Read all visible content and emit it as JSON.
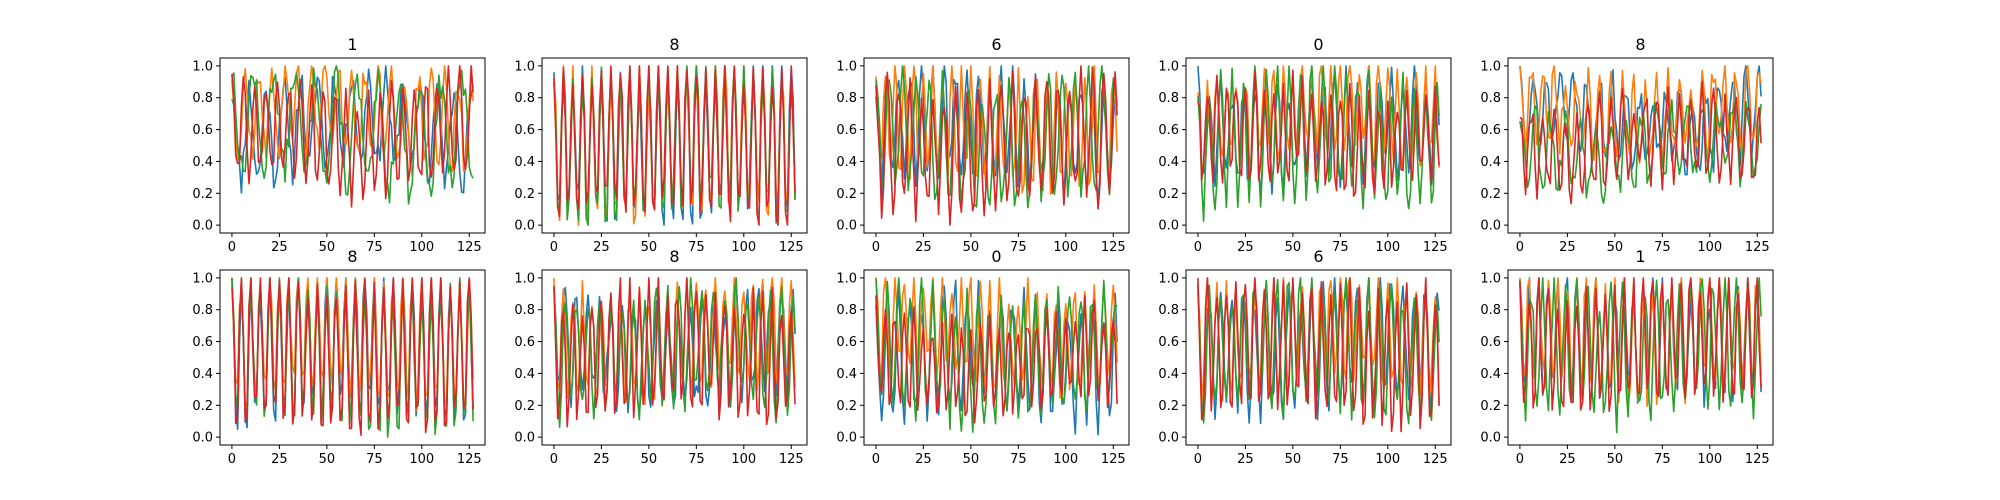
{
  "chart_data": [
    {
      "type": "line",
      "title": "1",
      "x": {
        "range": [
          0,
          127
        ],
        "ticks": [
          0,
          25,
          50,
          75,
          100,
          125
        ]
      },
      "ylim": [
        0,
        1
      ],
      "yticks": [
        "0.0",
        "0.2",
        "0.4",
        "0.6",
        "0.8",
        "1.0"
      ],
      "series": [
        {
          "color": "#1f77b4",
          "seed": 11,
          "period": 9,
          "center": 0.62,
          "amplitude": 0.28
        },
        {
          "color": "#ff7f0e",
          "seed": 12,
          "period": 7,
          "center": 0.7,
          "amplitude": 0.27
        },
        {
          "color": "#2ca02c",
          "seed": 13,
          "period": 11,
          "center": 0.6,
          "amplitude": 0.32
        },
        {
          "color": "#d62728",
          "seed": 14,
          "period": 6,
          "center": 0.58,
          "amplitude": 0.3
        }
      ]
    },
    {
      "type": "line",
      "title": "8",
      "x": {
        "range": [
          0,
          127
        ],
        "ticks": [
          0,
          25,
          50,
          75,
          100,
          125
        ]
      },
      "ylim": [
        0,
        1
      ],
      "yticks": [
        "0.0",
        "0.2",
        "0.4",
        "0.6",
        "0.8",
        "1.0"
      ],
      "series": [
        {
          "color": "#1f77b4",
          "seed": 21,
          "period": 5,
          "center": 0.52,
          "amplitude": 0.46
        },
        {
          "color": "#ff7f0e",
          "seed": 22,
          "period": 5,
          "center": 0.52,
          "amplitude": 0.46
        },
        {
          "color": "#2ca02c",
          "seed": 23,
          "period": 5,
          "center": 0.52,
          "amplitude": 0.46
        },
        {
          "color": "#d62728",
          "seed": 24,
          "period": 5,
          "center": 0.52,
          "amplitude": 0.47
        }
      ]
    },
    {
      "type": "line",
      "title": "6",
      "x": {
        "range": [
          0,
          127
        ],
        "ticks": [
          0,
          25,
          50,
          75,
          100,
          125
        ]
      },
      "ylim": [
        0,
        1
      ],
      "yticks": [
        "0.0",
        "0.2",
        "0.4",
        "0.6",
        "0.8",
        "1.0"
      ],
      "series": [
        {
          "color": "#1f77b4",
          "seed": 31,
          "period": 6,
          "center": 0.6,
          "amplitude": 0.32
        },
        {
          "color": "#ff7f0e",
          "seed": 32,
          "period": 5,
          "center": 0.62,
          "amplitude": 0.35
        },
        {
          "color": "#2ca02c",
          "seed": 33,
          "period": 7,
          "center": 0.55,
          "amplitude": 0.35
        },
        {
          "color": "#d62728",
          "seed": 34,
          "period": 6,
          "center": 0.5,
          "amplitude": 0.38
        }
      ]
    },
    {
      "type": "line",
      "title": "0",
      "x": {
        "range": [
          0,
          127
        ],
        "ticks": [
          0,
          25,
          50,
          75,
          100,
          125
        ]
      },
      "ylim": [
        0,
        1
      ],
      "yticks": [
        "0.0",
        "0.2",
        "0.4",
        "0.6",
        "0.8",
        "1.0"
      ],
      "series": [
        {
          "color": "#1f77b4",
          "seed": 41,
          "period": 6,
          "center": 0.6,
          "amplitude": 0.3
        },
        {
          "color": "#ff7f0e",
          "seed": 42,
          "period": 5,
          "center": 0.7,
          "amplitude": 0.28
        },
        {
          "color": "#2ca02c",
          "seed": 43,
          "period": 6,
          "center": 0.55,
          "amplitude": 0.38
        },
        {
          "color": "#d62728",
          "seed": 44,
          "period": 5,
          "center": 0.55,
          "amplitude": 0.28
        }
      ]
    },
    {
      "type": "line",
      "title": "8",
      "x": {
        "range": [
          0,
          127
        ],
        "ticks": [
          0,
          25,
          50,
          75,
          100,
          125
        ]
      },
      "ylim": [
        0,
        1
      ],
      "yticks": [
        "0.0",
        "0.2",
        "0.4",
        "0.6",
        "0.8",
        "1.0"
      ],
      "series": [
        {
          "color": "#1f77b4",
          "seed": 51,
          "period": 7,
          "center": 0.66,
          "amplitude": 0.22
        },
        {
          "color": "#ff7f0e",
          "seed": 52,
          "period": 6,
          "center": 0.7,
          "amplitude": 0.22
        },
        {
          "color": "#2ca02c",
          "seed": 53,
          "period": 8,
          "center": 0.5,
          "amplitude": 0.22
        },
        {
          "color": "#d62728",
          "seed": 54,
          "period": 6,
          "center": 0.52,
          "amplitude": 0.26
        }
      ]
    },
    {
      "type": "line",
      "title": "8",
      "x": {
        "range": [
          0,
          127
        ],
        "ticks": [
          0,
          25,
          50,
          75,
          100,
          125
        ]
      },
      "ylim": [
        0,
        1
      ],
      "yticks": [
        "0.0",
        "0.2",
        "0.4",
        "0.6",
        "0.8",
        "1.0"
      ],
      "series": [
        {
          "color": "#1f77b4",
          "seed": 61,
          "period": 5,
          "center": 0.55,
          "amplitude": 0.44
        },
        {
          "color": "#ff7f0e",
          "seed": 62,
          "period": 5,
          "center": 0.62,
          "amplitude": 0.38
        },
        {
          "color": "#2ca02c",
          "seed": 63,
          "period": 5,
          "center": 0.52,
          "amplitude": 0.44
        },
        {
          "color": "#d62728",
          "seed": 64,
          "period": 5,
          "center": 0.52,
          "amplitude": 0.46
        }
      ]
    },
    {
      "type": "line",
      "title": "8",
      "x": {
        "range": [
          0,
          127
        ],
        "ticks": [
          0,
          25,
          50,
          75,
          100,
          125
        ]
      },
      "ylim": [
        0,
        1
      ],
      "yticks": [
        "0.0",
        "0.2",
        "0.4",
        "0.6",
        "0.8",
        "1.0"
      ],
      "series": [
        {
          "color": "#1f77b4",
          "seed": 71,
          "period": 6,
          "center": 0.55,
          "amplitude": 0.3
        },
        {
          "color": "#ff7f0e",
          "seed": 72,
          "period": 5,
          "center": 0.62,
          "amplitude": 0.34
        },
        {
          "color": "#2ca02c",
          "seed": 73,
          "period": 6,
          "center": 0.55,
          "amplitude": 0.34
        },
        {
          "color": "#d62728",
          "seed": 74,
          "period": 5,
          "center": 0.52,
          "amplitude": 0.38
        }
      ]
    },
    {
      "type": "line",
      "title": "0",
      "x": {
        "range": [
          0,
          127
        ],
        "ticks": [
          0,
          25,
          50,
          75,
          100,
          125
        ]
      },
      "ylim": [
        0,
        1
      ],
      "yticks": [
        "0.0",
        "0.2",
        "0.4",
        "0.6",
        "0.8",
        "1.0"
      ],
      "series": [
        {
          "color": "#1f77b4",
          "seed": 81,
          "period": 6,
          "center": 0.5,
          "amplitude": 0.34
        },
        {
          "color": "#ff7f0e",
          "seed": 82,
          "period": 5,
          "center": 0.66,
          "amplitude": 0.3
        },
        {
          "color": "#2ca02c",
          "seed": 83,
          "period": 6,
          "center": 0.52,
          "amplitude": 0.36
        },
        {
          "color": "#d62728",
          "seed": 84,
          "period": 5,
          "center": 0.48,
          "amplitude": 0.28
        }
      ]
    },
    {
      "type": "line",
      "title": "6",
      "x": {
        "range": [
          0,
          127
        ],
        "ticks": [
          0,
          25,
          50,
          75,
          100,
          125
        ]
      },
      "ylim": [
        0,
        1
      ],
      "yticks": [
        "0.0",
        "0.2",
        "0.4",
        "0.6",
        "0.8",
        "1.0"
      ],
      "series": [
        {
          "color": "#1f77b4",
          "seed": 91,
          "period": 6,
          "center": 0.58,
          "amplitude": 0.36
        },
        {
          "color": "#ff7f0e",
          "seed": 92,
          "period": 5,
          "center": 0.64,
          "amplitude": 0.34
        },
        {
          "color": "#2ca02c",
          "seed": 93,
          "period": 6,
          "center": 0.55,
          "amplitude": 0.38
        },
        {
          "color": "#d62728",
          "seed": 94,
          "period": 5,
          "center": 0.55,
          "amplitude": 0.4
        }
      ]
    },
    {
      "type": "line",
      "title": "1",
      "x": {
        "range": [
          0,
          127
        ],
        "ticks": [
          0,
          25,
          50,
          75,
          100,
          125
        ]
      },
      "ylim": [
        0,
        1
      ],
      "yticks": [
        "0.0",
        "0.2",
        "0.4",
        "0.6",
        "0.8",
        "1.0"
      ],
      "series": [
        {
          "color": "#1f77b4",
          "seed": 101,
          "period": 5,
          "center": 0.62,
          "amplitude": 0.34
        },
        {
          "color": "#ff7f0e",
          "seed": 102,
          "period": 5,
          "center": 0.64,
          "amplitude": 0.34
        },
        {
          "color": "#2ca02c",
          "seed": 103,
          "period": 6,
          "center": 0.55,
          "amplitude": 0.38
        },
        {
          "color": "#d62728",
          "seed": 104,
          "period": 5,
          "center": 0.58,
          "amplitude": 0.38
        }
      ]
    }
  ]
}
